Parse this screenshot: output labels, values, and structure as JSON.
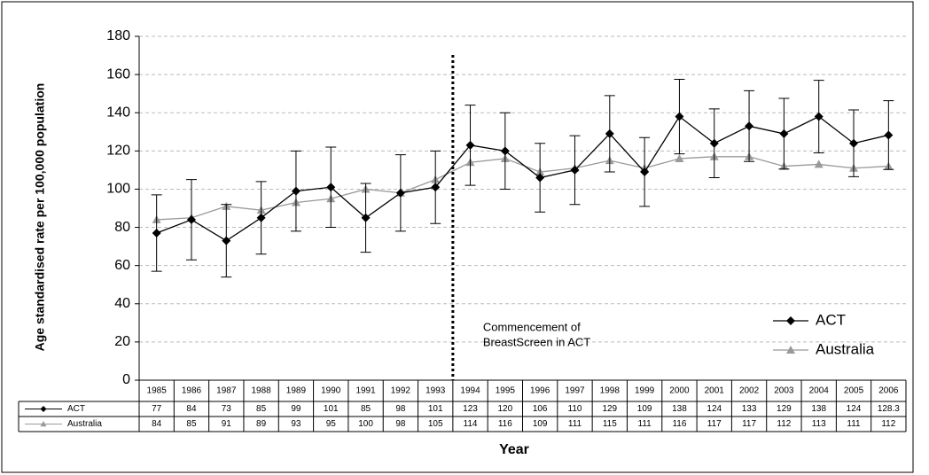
{
  "chart_data": {
    "type": "line",
    "y_label": "Age standardised rate per 100,000 population",
    "x_label": "Year",
    "categories": [
      "1985",
      "1986",
      "1987",
      "1988",
      "1989",
      "1990",
      "1991",
      "1992",
      "1993",
      "1994",
      "1995",
      "1996",
      "1997",
      "1998",
      "1999",
      "2000",
      "2001",
      "2002",
      "2003",
      "2004",
      "2005",
      "2006"
    ],
    "series": [
      {
        "name": "ACT",
        "color": "#000000",
        "marker": "diamond",
        "values": [
          77,
          84,
          73,
          85,
          99,
          101,
          85,
          98,
          101,
          123,
          120,
          106,
          110,
          129,
          109,
          138,
          124,
          133,
          129,
          138,
          124,
          128.3
        ],
        "errors": [
          20,
          21,
          19,
          19,
          21,
          21,
          18,
          20,
          19,
          21,
          20,
          18,
          18,
          20,
          18,
          19.5,
          18,
          18.5,
          18.5,
          19,
          17.5,
          18
        ]
      },
      {
        "name": "Australia",
        "color": "#999999",
        "marker": "triangle",
        "values": [
          84,
          85,
          91,
          89,
          93,
          95,
          100,
          98,
          105,
          114,
          116,
          109,
          111,
          115,
          111,
          116,
          117,
          117,
          112,
          113,
          111,
          112
        ]
      }
    ],
    "ylim": [
      0,
      180
    ],
    "yticks": [
      0,
      20,
      40,
      60,
      80,
      100,
      120,
      140,
      160,
      180
    ],
    "grid": true,
    "annotation": [
      "Commencement of",
      "BreastScreen in ACT"
    ]
  }
}
